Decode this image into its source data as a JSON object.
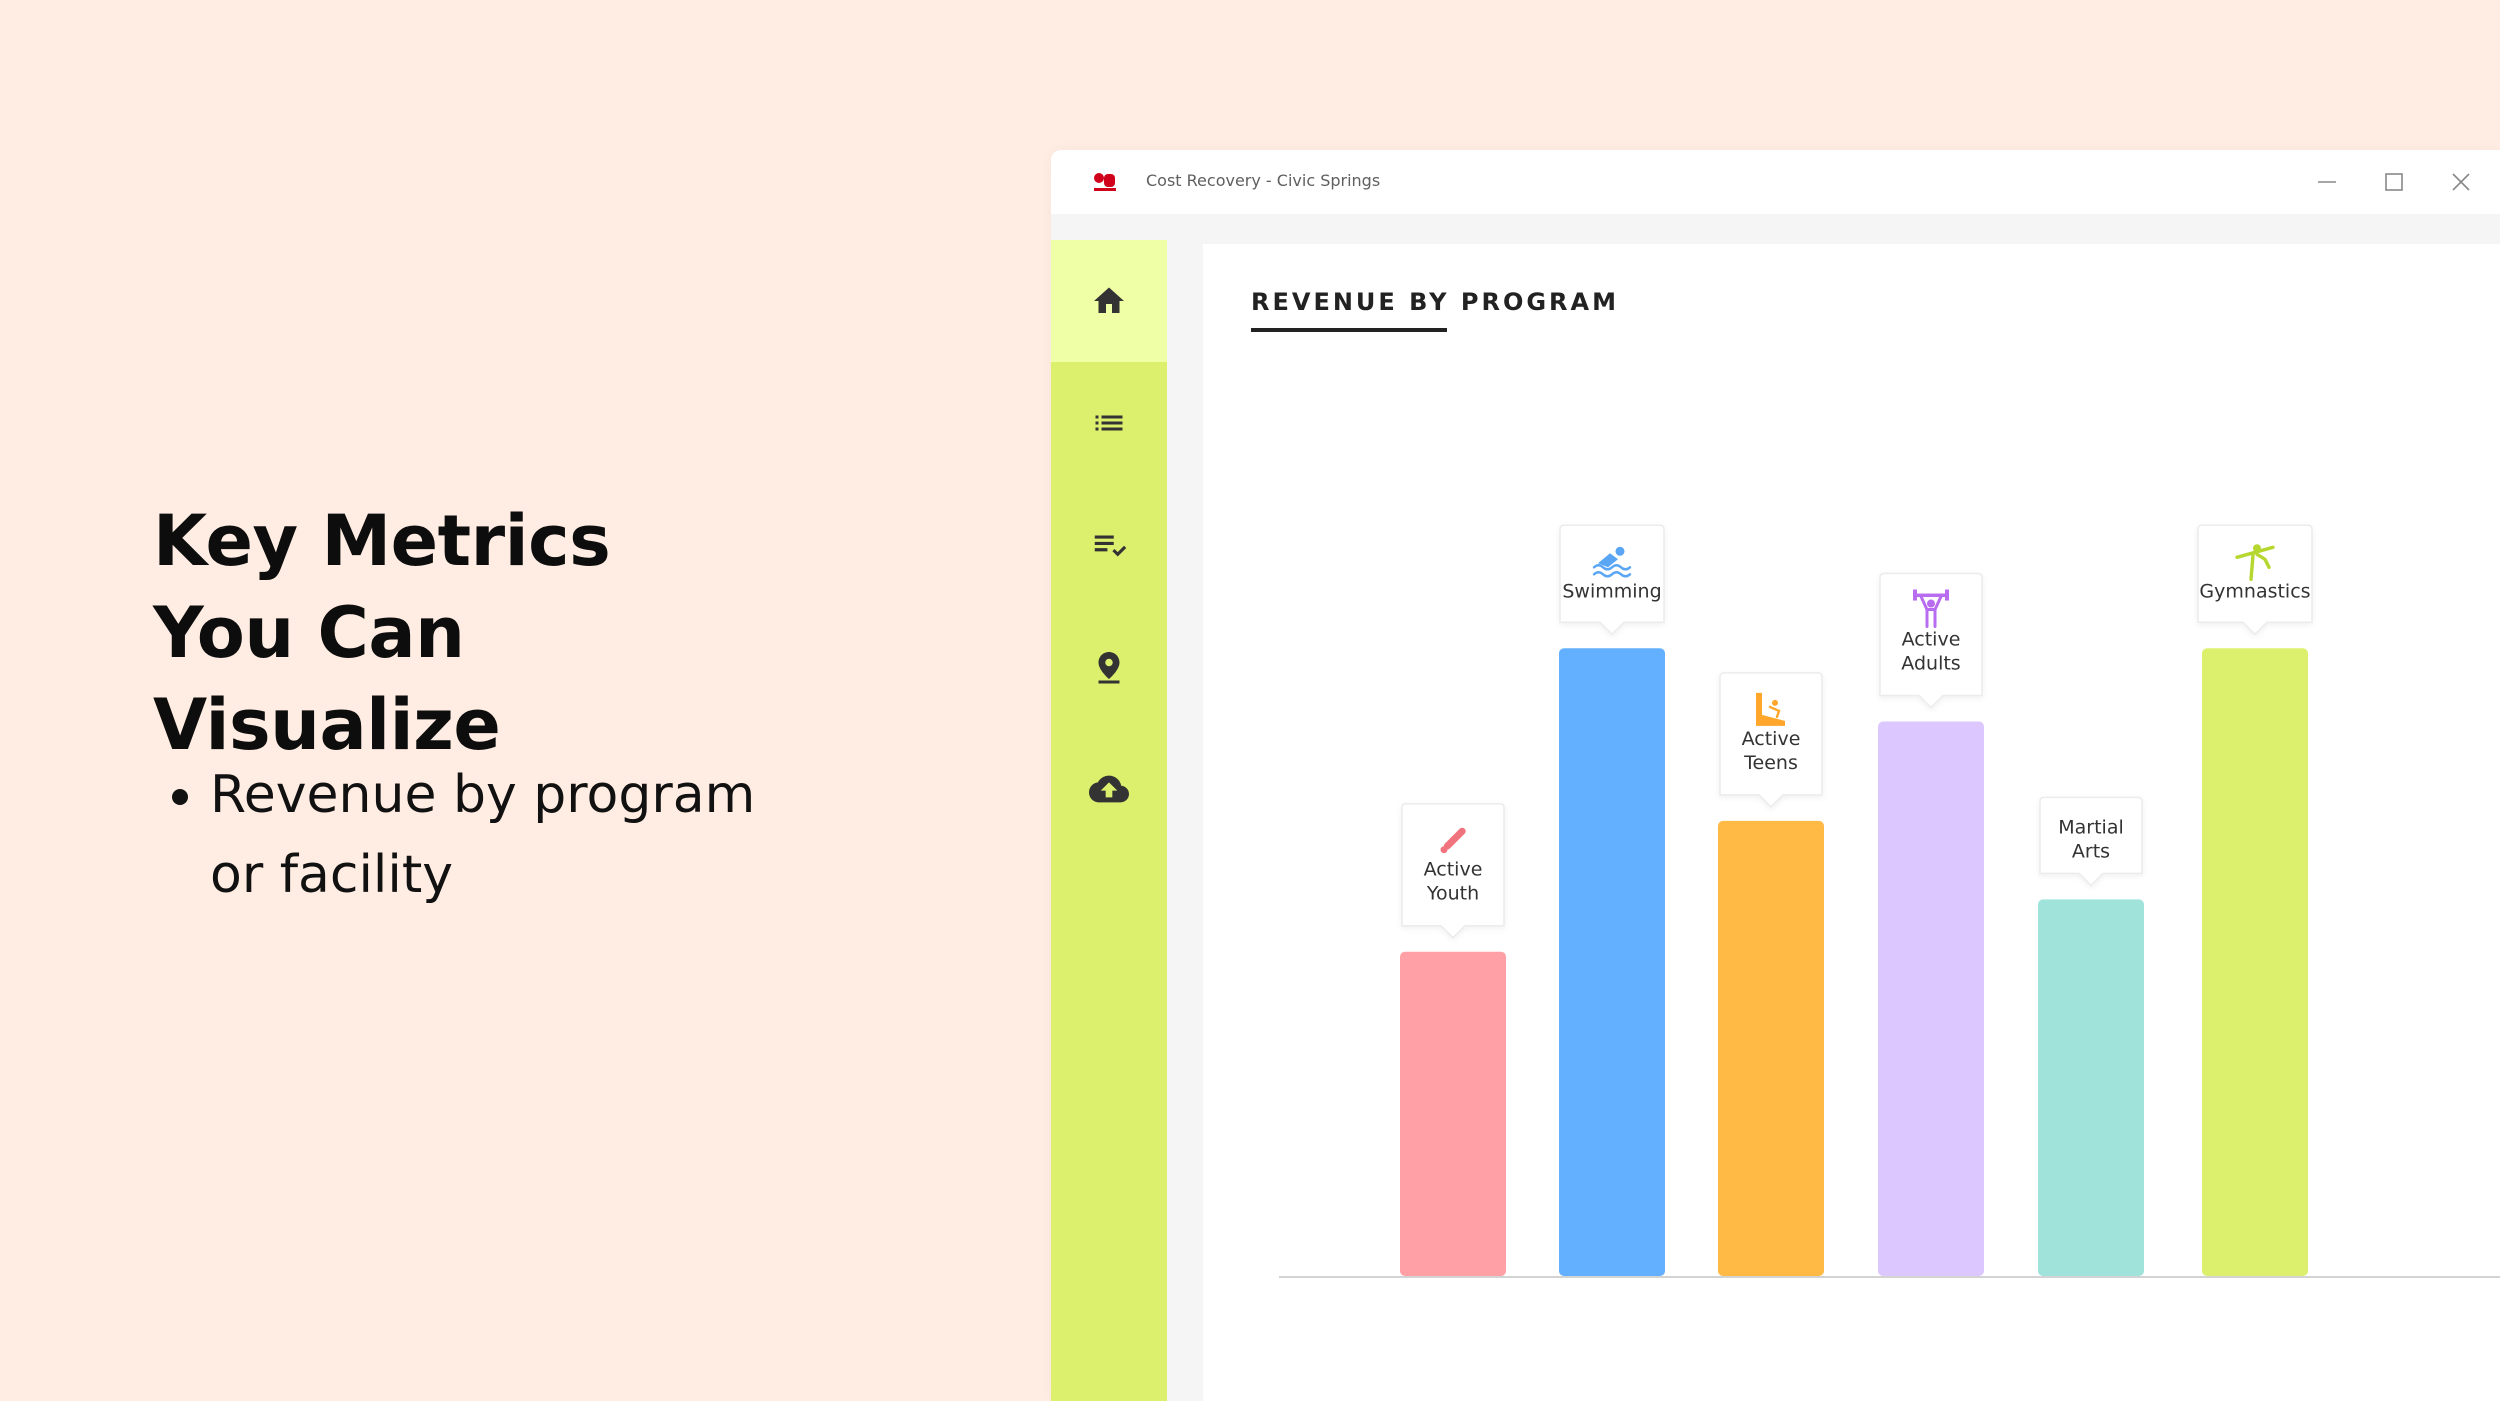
{
  "slide": {
    "headline": "Key Metrics You Can Visualize",
    "bullets": [
      "Revenue by program or facility"
    ]
  },
  "window": {
    "title": "Cost Recovery - Civic Springs",
    "controls": [
      "minimize-icon",
      "maximize-icon",
      "close-icon"
    ],
    "logo_color": "#D0021B"
  },
  "sidebar": {
    "items": [
      {
        "icon": "home-icon",
        "active": true
      },
      {
        "icon": "list-icon",
        "active": false
      },
      {
        "icon": "checklist-icon",
        "active": false
      },
      {
        "icon": "location-pin-icon",
        "active": false
      },
      {
        "icon": "cloud-upload-icon",
        "active": false
      }
    ],
    "color": "#DDF06E",
    "active_color": "#EFFFA6"
  },
  "panel": {
    "title": "REVENUE BY PROGRAM"
  },
  "chart_data": {
    "type": "bar",
    "title": "REVENUE BY PROGRAM",
    "categories": [
      "Active Youth",
      "Swimming",
      "Active Teens",
      "Active Adults",
      "Martial Arts",
      "Gymnastics"
    ],
    "values": [
      3.1,
      6.0,
      4.35,
      5.3,
      3.6,
      6.0
    ],
    "value_note": "relative bar heights; no axis values printed",
    "ylim": [
      0,
      6.5
    ],
    "grid": false,
    "colors": [
      "#FF9FA6",
      "#62B0FF",
      "#FFBA45",
      "#DCC7FF",
      "#A0E3DB",
      "#DDF06E"
    ],
    "icons": [
      "bat-icon",
      "swimmer-icon",
      "ski-slope-icon",
      "weightlifter-icon",
      "",
      "gymnast-icon"
    ],
    "icon_colors": [
      "#F0737D",
      "#5AA6F5",
      "#FFA62B",
      "#B86CF0",
      "",
      "#B6D72F"
    ]
  }
}
